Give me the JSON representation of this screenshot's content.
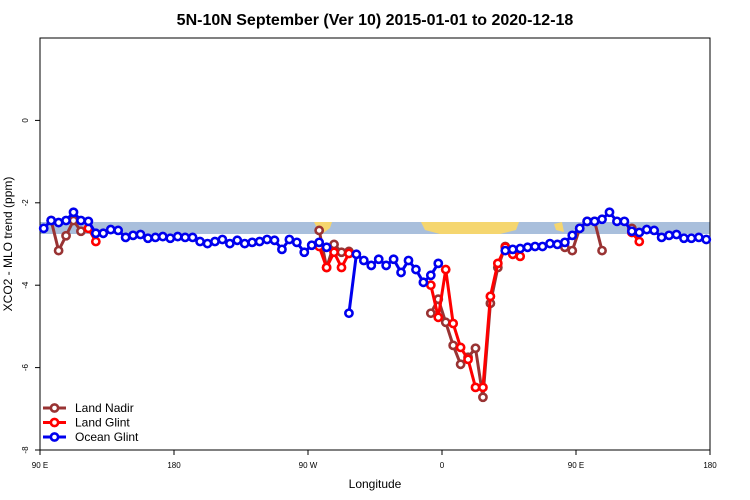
{
  "chart_data": {
    "type": "line",
    "title": "5N-10N September (Ver 10)   2015-01-01 to 2020-12-18",
    "x_label": "Longitude",
    "y_label": "XCO2 - MLO trend (ppm)",
    "xlim": [
      90,
      540
    ],
    "xticks": [
      {
        "value": 90,
        "label": "90 E"
      },
      {
        "value": 180,
        "label": "180"
      },
      {
        "value": 270,
        "label": "90 W"
      },
      {
        "value": 360,
        "label": "0"
      },
      {
        "value": 450,
        "label": "90 E"
      },
      {
        "value": 540,
        "label": "180"
      }
    ],
    "ylim": [
      -8,
      2
    ],
    "yticks": [
      -8,
      -6,
      -4,
      -2,
      0
    ],
    "legend": "bottom-left",
    "x": [
      92.5,
      97.5,
      102.5,
      107.5,
      112.5,
      117.5,
      122.5,
      127.5,
      132.5,
      137.5,
      142.5,
      147.5,
      152.5,
      157.5,
      162.5,
      167.5,
      172.5,
      177.5,
      182.5,
      187.5,
      192.5,
      197.5,
      202.5,
      207.5,
      212.5,
      217.5,
      222.5,
      227.5,
      232.5,
      237.5,
      242.5,
      247.5,
      252.5,
      257.5,
      262.5,
      267.5,
      272.5,
      277.5,
      282.5,
      287.5,
      292.5,
      297.5,
      302.5,
      307.5,
      312.5,
      317.5,
      322.5,
      327.5,
      332.5,
      337.5,
      342.5,
      347.5,
      352.5,
      357.5,
      362.5,
      367.5,
      372.5,
      377.5,
      382.5,
      387.5,
      392.5,
      397.5,
      402.5,
      407.5,
      412.5,
      417.5,
      422.5,
      427.5,
      432.5,
      437.5,
      442.5,
      447.5,
      452.5,
      457.5,
      462.5,
      467.5,
      472.5,
      477.5,
      482.5,
      487.5,
      492.5,
      497.5,
      502.5,
      507.5,
      512.5,
      517.5,
      522.5,
      527.5,
      532.5,
      537.5
    ],
    "series": [
      {
        "name": "Land Nadir",
        "color": "#993333",
        "values": [
          null,
          -2.43,
          -3.16,
          -2.8,
          -2.43,
          -2.69,
          null,
          null,
          null,
          null,
          null,
          null,
          null,
          null,
          null,
          null,
          null,
          null,
          null,
          null,
          null,
          null,
          null,
          null,
          null,
          null,
          null,
          null,
          null,
          null,
          null,
          null,
          null,
          null,
          null,
          null,
          null,
          -2.67,
          -3.57,
          -3.01,
          -3.2,
          -3.18,
          null,
          null,
          null,
          null,
          null,
          null,
          null,
          null,
          null,
          null,
          -4.68,
          -4.34,
          -4.9,
          -5.46,
          -5.92,
          -5.75,
          -5.53,
          -6.72,
          -4.44,
          -3.57,
          -3.06,
          -3.16,
          null,
          null,
          null,
          null,
          null,
          null,
          -3.08,
          -3.16,
          -2.62,
          -2.45,
          -2.45,
          -3.16,
          null,
          null,
          null,
          -2.62,
          -2.72,
          null,
          null,
          null,
          null,
          null,
          null,
          null,
          null,
          null
        ]
      },
      {
        "name": "Land Glint",
        "color": "#ff0000",
        "values": [
          null,
          null,
          null,
          null,
          null,
          null,
          -2.62,
          -2.94,
          null,
          null,
          null,
          null,
          null,
          null,
          null,
          null,
          null,
          null,
          null,
          null,
          null,
          null,
          null,
          null,
          null,
          null,
          null,
          null,
          null,
          null,
          null,
          null,
          null,
          null,
          null,
          null,
          null,
          -3.06,
          -3.57,
          -3.2,
          -3.57,
          -3.23,
          null,
          null,
          null,
          null,
          null,
          null,
          null,
          null,
          null,
          null,
          -4.0,
          -4.78,
          -3.62,
          -4.93,
          -5.51,
          -5.8,
          -6.48,
          -6.48,
          -4.27,
          -3.47,
          -3.08,
          -3.25,
          -3.3,
          null,
          null,
          null,
          null,
          null,
          null,
          null,
          null,
          null,
          null,
          null,
          null,
          null,
          null,
          -2.72,
          -2.94,
          null,
          null,
          null,
          null,
          null,
          null,
          null,
          null,
          null
        ]
      },
      {
        "name": "Ocean Glint",
        "color": "#0000ee",
        "values": [
          -2.62,
          -2.43,
          -2.48,
          -2.43,
          -2.23,
          -2.43,
          -2.45,
          -2.74,
          -2.74,
          -2.65,
          -2.67,
          -2.84,
          -2.79,
          -2.77,
          -2.86,
          -2.84,
          -2.82,
          -2.86,
          -2.82,
          -2.84,
          -2.84,
          -2.94,
          -2.99,
          -2.94,
          -2.89,
          -2.99,
          -2.91,
          -2.99,
          -2.96,
          -2.94,
          -2.89,
          -2.91,
          -3.13,
          -2.89,
          -2.96,
          -3.2,
          -3.03,
          -2.96,
          -3.08,
          null,
          null,
          -4.68,
          -3.25,
          -3.4,
          -3.52,
          -3.37,
          -3.52,
          -3.37,
          -3.69,
          -3.4,
          -3.62,
          -3.93,
          -3.76,
          -3.47,
          null,
          null,
          null,
          null,
          null,
          null,
          null,
          null,
          -3.16,
          -3.13,
          -3.11,
          -3.08,
          -3.06,
          -3.06,
          -2.99,
          -3.01,
          -2.96,
          -2.79,
          -2.62,
          -2.45,
          -2.45,
          -2.4,
          -2.23,
          -2.45,
          -2.45,
          -2.69,
          -2.72,
          -2.65,
          -2.67,
          -2.84,
          -2.79,
          -2.77,
          -2.86,
          -2.86,
          -2.84,
          -2.89
        ]
      }
    ]
  }
}
